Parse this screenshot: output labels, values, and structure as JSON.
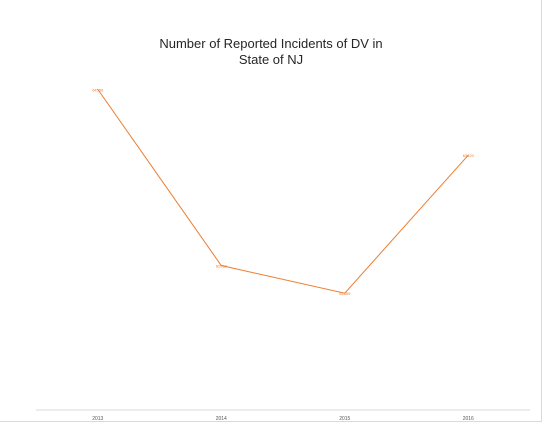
{
  "chart_data": {
    "type": "line",
    "title": [
      "Number of Reported Incidents of DV in",
      "State of NJ"
    ],
    "categories": [
      "2013",
      "2014",
      "2015",
      "2016"
    ],
    "series": [
      {
        "values": [
          64556,
          62052,
          61659,
          63620
        ],
        "color": "#ED7D31"
      }
    ],
    "data_labels": [
      "64556",
      "62052",
      "61659",
      "63620"
    ],
    "ylim": [
      60000,
      65000
    ],
    "xlabel": "",
    "ylabel": "",
    "grid": false,
    "legend": "none",
    "axis_color": "#d9d9d9"
  }
}
